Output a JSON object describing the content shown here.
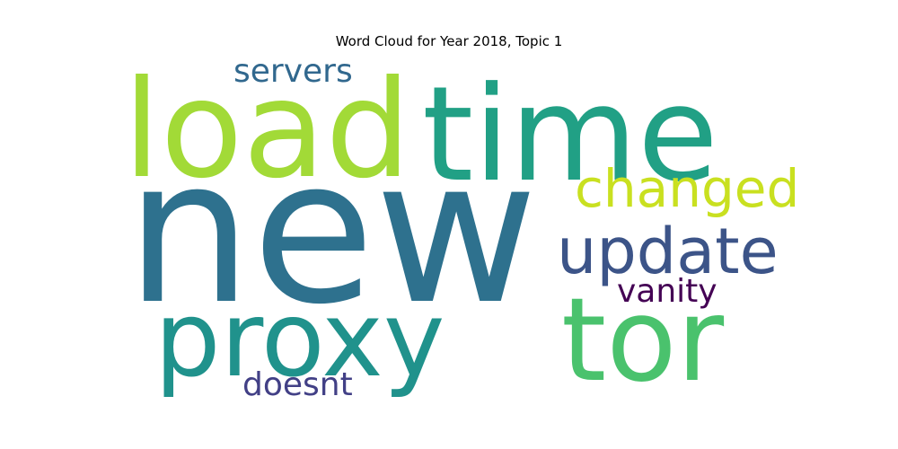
{
  "chart_data": {
    "type": "wordcloud",
    "title": "Word Cloud for Year 2018, Topic 1",
    "words": [
      {
        "text": "new",
        "rank": 1,
        "color": "#2e718e"
      },
      {
        "text": "time",
        "rank": 2,
        "color": "#21a085"
      },
      {
        "text": "load",
        "rank": 3,
        "color": "#a2da37"
      },
      {
        "text": "proxy",
        "rank": 4,
        "color": "#20928c"
      },
      {
        "text": "tor",
        "rank": 5,
        "color": "#4ac26d"
      },
      {
        "text": "update",
        "rank": 6,
        "color": "#3c5488"
      },
      {
        "text": "changed",
        "rank": 7,
        "color": "#c9e020"
      },
      {
        "text": "servers",
        "rank": 8,
        "color": "#31688e"
      },
      {
        "text": "vanity",
        "rank": 9,
        "color": "#440154"
      },
      {
        "text": "doesnt",
        "rank": 10,
        "color": "#424086"
      }
    ]
  }
}
